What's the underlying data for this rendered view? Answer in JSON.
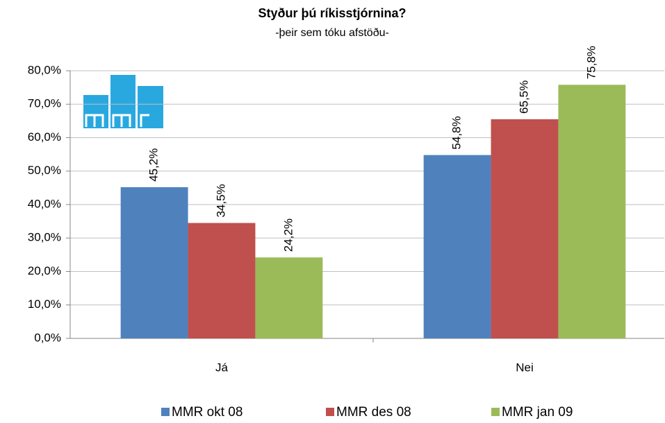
{
  "chart_data": {
    "type": "bar",
    "title": "Styður þú ríkisstjórnina?",
    "subtitle": "-þeir sem tóku afstöðu-",
    "categories": [
      "Já",
      "Nei"
    ],
    "series": [
      {
        "name": "MMR okt 08",
        "color": "#4f81bd",
        "values": [
          45.2,
          54.8
        ],
        "value_labels": [
          "45,2%",
          "54,8%"
        ]
      },
      {
        "name": "MMR des 08",
        "color": "#c0504d",
        "values": [
          34.5,
          65.5
        ],
        "value_labels": [
          "34,5%",
          "65,5%"
        ]
      },
      {
        "name": "MMR jan 09",
        "color": "#9bbb59",
        "values": [
          24.2,
          75.8
        ],
        "value_labels": [
          "24,2%",
          "75,8%"
        ]
      }
    ],
    "ylim": [
      0,
      80
    ],
    "yticks": [
      {
        "value": 0,
        "label": "0,0%"
      },
      {
        "value": 10,
        "label": "10,0%"
      },
      {
        "value": 20,
        "label": "20,0%"
      },
      {
        "value": 30,
        "label": "30,0%"
      },
      {
        "value": 40,
        "label": "40,0%"
      },
      {
        "value": 50,
        "label": "50,0%"
      },
      {
        "value": 60,
        "label": "60,0%"
      },
      {
        "value": 70,
        "label": "70,0%"
      },
      {
        "value": 80,
        "label": "80,0%"
      }
    ],
    "grid": true,
    "legend": "bottom"
  }
}
